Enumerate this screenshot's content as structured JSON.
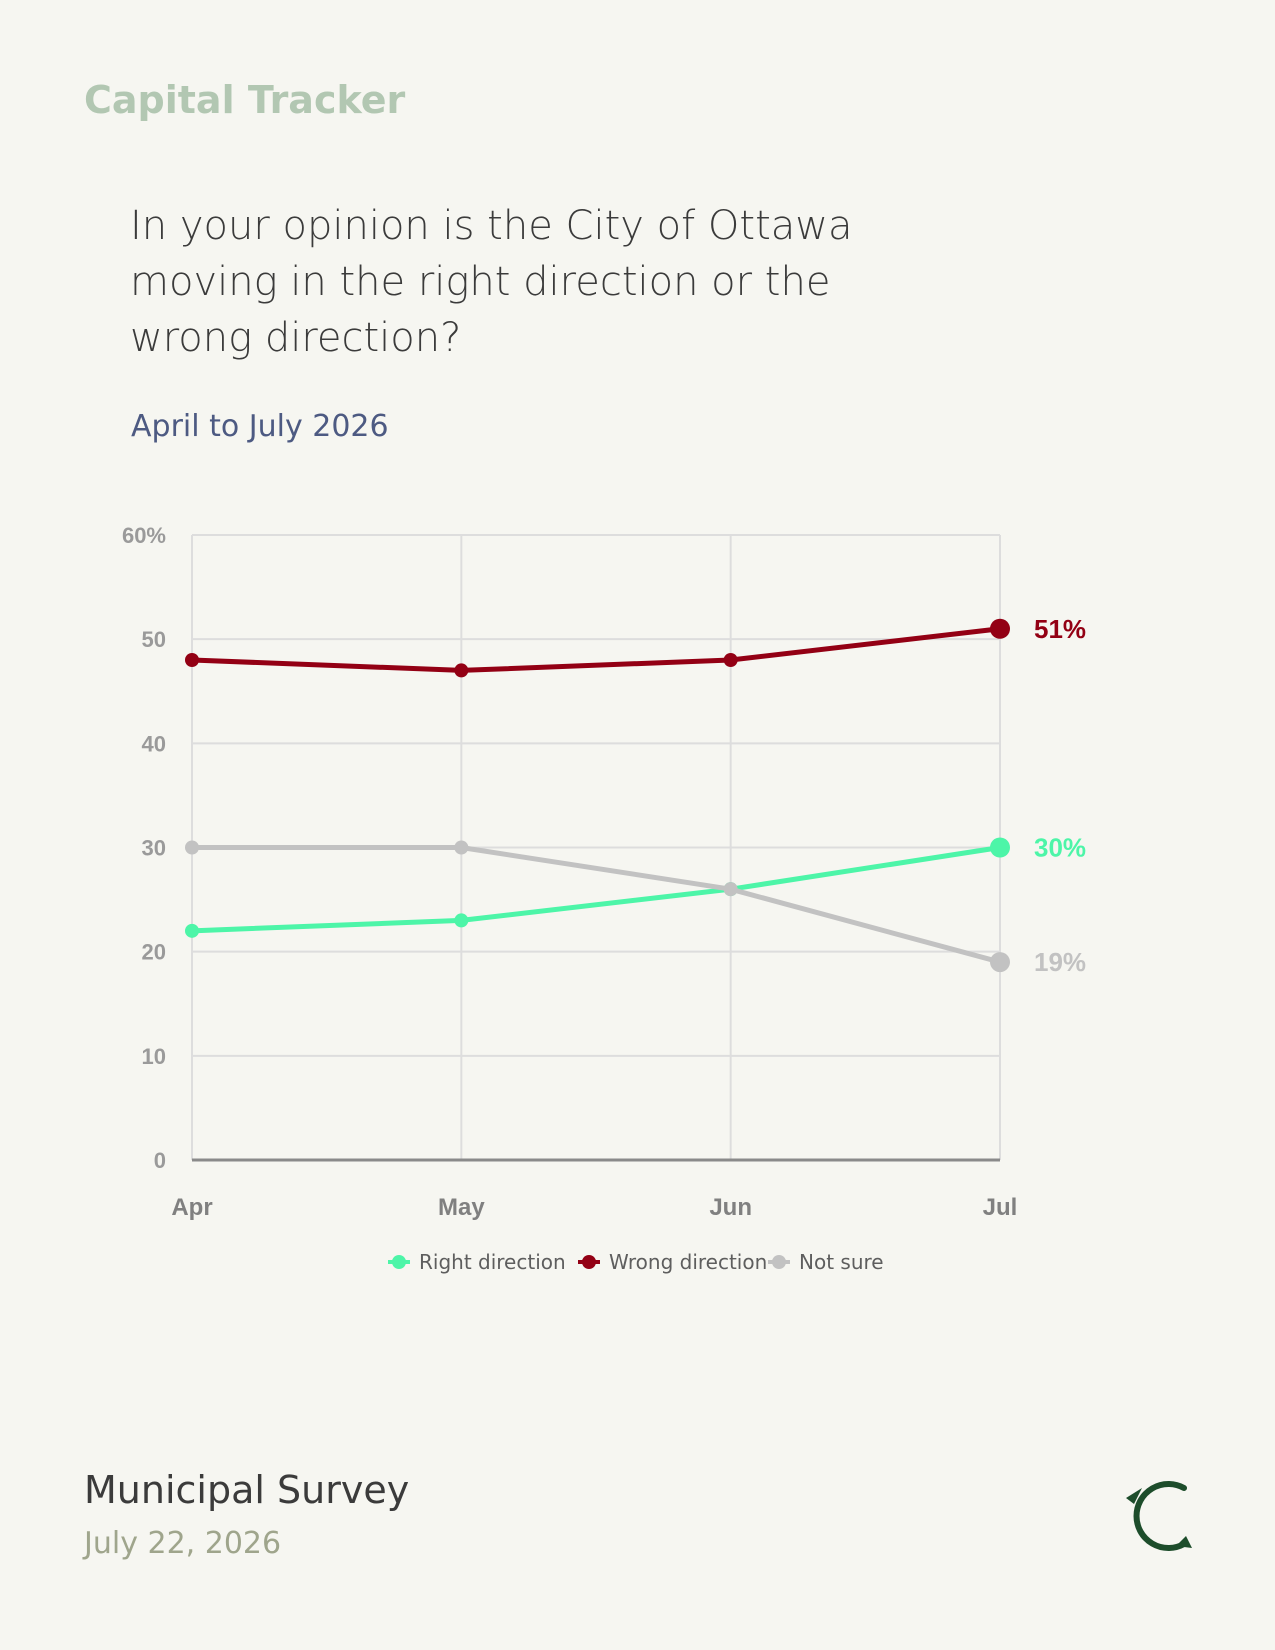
{
  "brand": "Capital Tracker",
  "question": "In your opinion is the City of Ottawa moving in the right direction or the wrong direction?",
  "subtitle": "April to July 2026",
  "footer": {
    "title": "Municipal Survey",
    "date": "July 22, 2026"
  },
  "chart_data": {
    "type": "line",
    "x": [
      "Apr",
      "May",
      "Jun",
      "Jul"
    ],
    "ylim": [
      0,
      60
    ],
    "yticks": [
      0,
      10,
      20,
      30,
      40,
      50,
      60
    ],
    "ytick_labels": [
      "0",
      "10",
      "20",
      "30",
      "40",
      "50",
      "60%"
    ],
    "grid": true,
    "legend_position": "bottom-center",
    "series": [
      {
        "name": "Right direction",
        "values": [
          22,
          23,
          26,
          30
        ],
        "color": "#4df5a8",
        "end_label": "30%"
      },
      {
        "name": "Wrong direction",
        "values": [
          48,
          47,
          48,
          51
        ],
        "color": "#930014",
        "end_label": "51%"
      },
      {
        "name": "Not sure",
        "values": [
          30,
          30,
          26,
          19
        ],
        "color": "#c2c2c2",
        "end_label": "19%"
      }
    ]
  },
  "colors": {
    "background": "#f6f6f1",
    "grid": "#dddddd",
    "axis_text": "#9a9a9a",
    "brand": "#b2c7b2",
    "logo": "#1d4d2b"
  },
  "icons": {
    "logo": "tracker-logo-icon"
  }
}
